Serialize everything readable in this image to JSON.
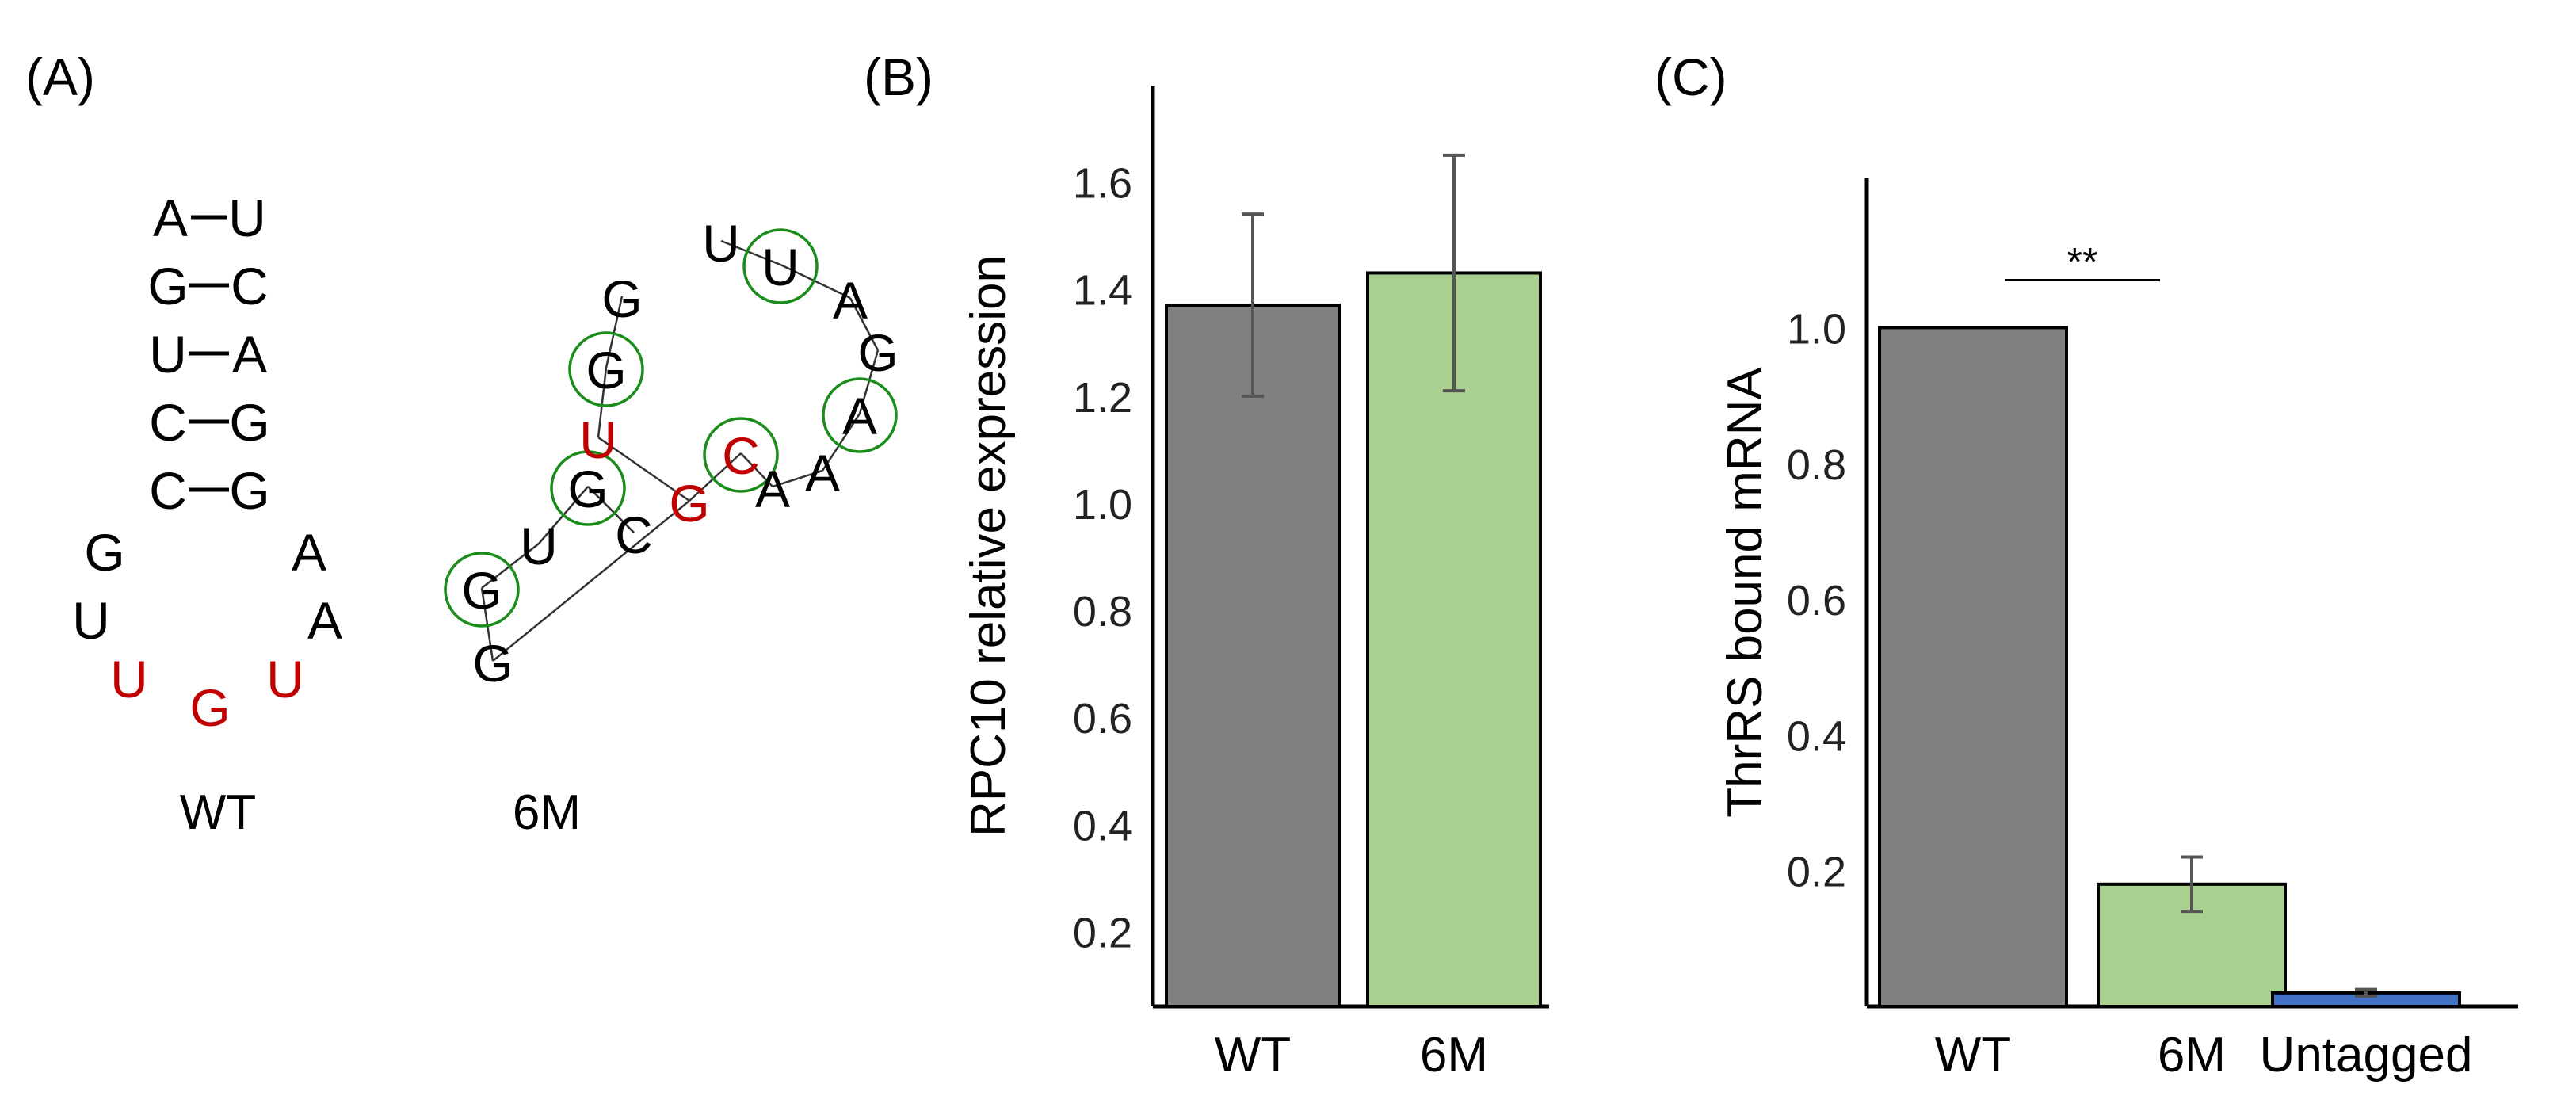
{
  "panel_a": {
    "label": "(A)",
    "wt": {
      "caption": "WT",
      "pairs": [
        [
          "A",
          "U"
        ],
        [
          "G",
          "C"
        ],
        [
          "U",
          "A"
        ],
        [
          "C",
          "G"
        ],
        [
          "C",
          "G"
        ]
      ],
      "loop": [
        "G",
        "U",
        "U",
        "G",
        "U",
        "A",
        "A"
      ],
      "loop_mutated": [
        false,
        false,
        true,
        true,
        true,
        false,
        false
      ]
    },
    "m6": {
      "caption": "6M",
      "nucleotides": [
        "G",
        "G",
        "U",
        "G",
        "C",
        "G",
        "G",
        "U",
        "G",
        "C",
        "A",
        "A",
        "A",
        "G",
        "A",
        "U",
        "U"
      ],
      "mutated": [
        false,
        false,
        false,
        false,
        false,
        false,
        false,
        true,
        true,
        true,
        false,
        false,
        false,
        false,
        false,
        false,
        false
      ],
      "circled": [
        false,
        true,
        false,
        true,
        false,
        false,
        true,
        false,
        false,
        true,
        false,
        false,
        true,
        false,
        false,
        true,
        false
      ],
      "colors": {
        "normal": "#000000",
        "mutated": "#c00000",
        "circle": "#1a8c1a"
      }
    }
  },
  "chart_data": [
    {
      "panel": "(B)",
      "type": "bar",
      "categories": [
        "WT",
        "6M"
      ],
      "values": [
        1.37,
        1.43
      ],
      "errors": [
        0.17,
        0.22
      ],
      "colors": [
        "#808080",
        "#a9d08e"
      ],
      "ylabel": "RPC10 relative expression",
      "xlabel": "",
      "ylim": [
        0.06,
        1.78
      ],
      "yticks": [
        "0.2",
        "0.4",
        "0.6",
        "0.8",
        "1.0",
        "1.2",
        "1.4",
        "1.6"
      ]
    },
    {
      "panel": "(C)",
      "type": "bar",
      "categories": [
        "WT",
        "6M",
        "Untagged"
      ],
      "values": [
        1.0,
        0.18,
        0.02
      ],
      "errors": [
        0.0,
        0.04,
        0.005
      ],
      "colors": [
        "#808080",
        "#a9d08e",
        "#4472c4"
      ],
      "ylabel": "ThrRS bound mRNA",
      "xlabel": "",
      "ylim": [
        0.0,
        1.22
      ],
      "yticks": [
        "0.2",
        "0.4",
        "0.6",
        "0.8",
        "1.0"
      ],
      "annotation": {
        "text": "**",
        "between": [
          "WT",
          "6M"
        ]
      }
    }
  ]
}
